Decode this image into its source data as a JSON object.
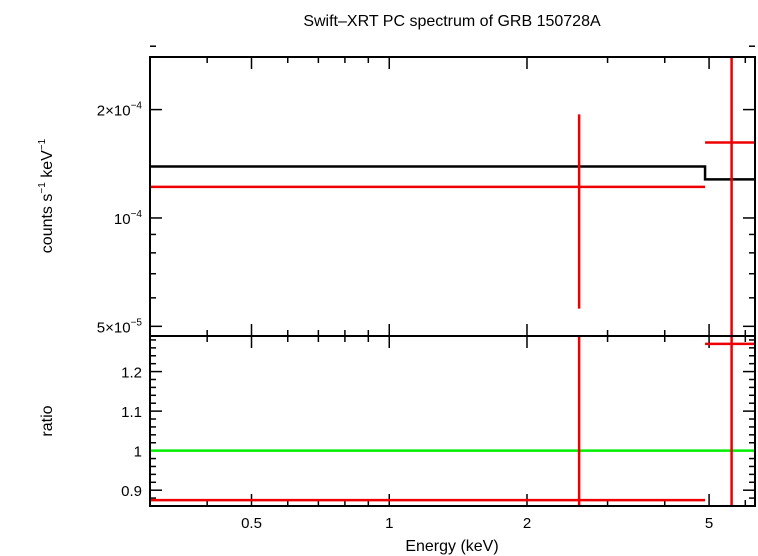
{
  "chart_data": [
    {
      "type": "line",
      "panel": "spectrum",
      "title": "Swift–XRT PC spectrum of GRB 150728A",
      "ylabel_parts": [
        "counts s",
        "−1",
        " keV",
        "−1"
      ],
      "xlim": [
        0.3,
        6.3
      ],
      "ylim": [
        4.7e-05,
        0.00028
      ],
      "xscale": "log",
      "yscale": "log",
      "yticks_major": [
        {
          "value": 5e-05,
          "mant": "5×10",
          "exp": "−5"
        },
        {
          "value": 0.0001,
          "mant": "10",
          "exp": "−4"
        },
        {
          "value": 0.0002,
          "mant": "2×10",
          "exp": "−4"
        }
      ],
      "yticks_minor": [
        6e-05,
        7e-05,
        8e-05,
        9e-05,
        0.0003
      ],
      "series": [
        {
          "color": "#000000",
          "kind": "model-step",
          "steps": [
            {
              "x0": 0.3,
              "x1": 4.9,
              "y": 0.000139
            },
            {
              "x0": 4.9,
              "x1": 6.3,
              "y": 0.000128
            }
          ]
        },
        {
          "color": "#ee0000",
          "kind": "data",
          "points": [
            {
              "x0": 0.3,
              "x1": 4.9,
              "xc": 2.6,
              "y": 0.000122,
              "ylo": 5.6e-05,
              "yhi": 0.000194
            },
            {
              "x0": 4.9,
              "x1": 6.3,
              "xc": 5.6,
              "y": 0.000162,
              "ylo": 4.7e-05,
              "yhi": 0.00028
            }
          ]
        }
      ]
    },
    {
      "type": "line",
      "panel": "ratio",
      "ylabel": "ratio",
      "xlabel": "Energy (keV)",
      "xlim": [
        0.3,
        6.3
      ],
      "ylim": [
        0.86,
        1.29
      ],
      "xscale": "log",
      "xticks_major": [
        {
          "value": 0.5,
          "label": "0.5"
        },
        {
          "value": 1,
          "label": "1"
        },
        {
          "value": 2,
          "label": "2"
        },
        {
          "value": 5,
          "label": "5"
        }
      ],
      "xticks_minor": [
        0.3,
        0.4,
        0.6,
        0.7,
        0.8,
        0.9,
        3,
        4,
        6
      ],
      "yticks_major": [
        {
          "value": 0.9,
          "label": "0.9"
        },
        {
          "value": 1.0,
          "label": "1"
        },
        {
          "value": 1.1,
          "label": "1.1"
        },
        {
          "value": 1.2,
          "label": "1.2"
        }
      ],
      "yticks_minor": [
        0.88,
        0.92,
        0.94,
        0.96,
        0.98,
        1.02,
        1.04,
        1.06,
        1.08,
        1.12,
        1.14,
        1.16,
        1.18,
        1.22,
        1.24,
        1.26,
        1.28
      ],
      "reference_line": {
        "y": 1.0,
        "color": "#00ee00"
      },
      "series": [
        {
          "color": "#ee0000",
          "kind": "data",
          "points": [
            {
              "x0": 0.3,
              "x1": 4.9,
              "xc": 2.6,
              "y": 0.875,
              "ylo": 0.86,
              "yhi": 1.29
            },
            {
              "x0": 4.9,
              "x1": 6.3,
              "xc": 5.6,
              "y": 1.27,
              "ylo": 0.86,
              "yhi": 1.29
            }
          ]
        }
      ]
    }
  ]
}
